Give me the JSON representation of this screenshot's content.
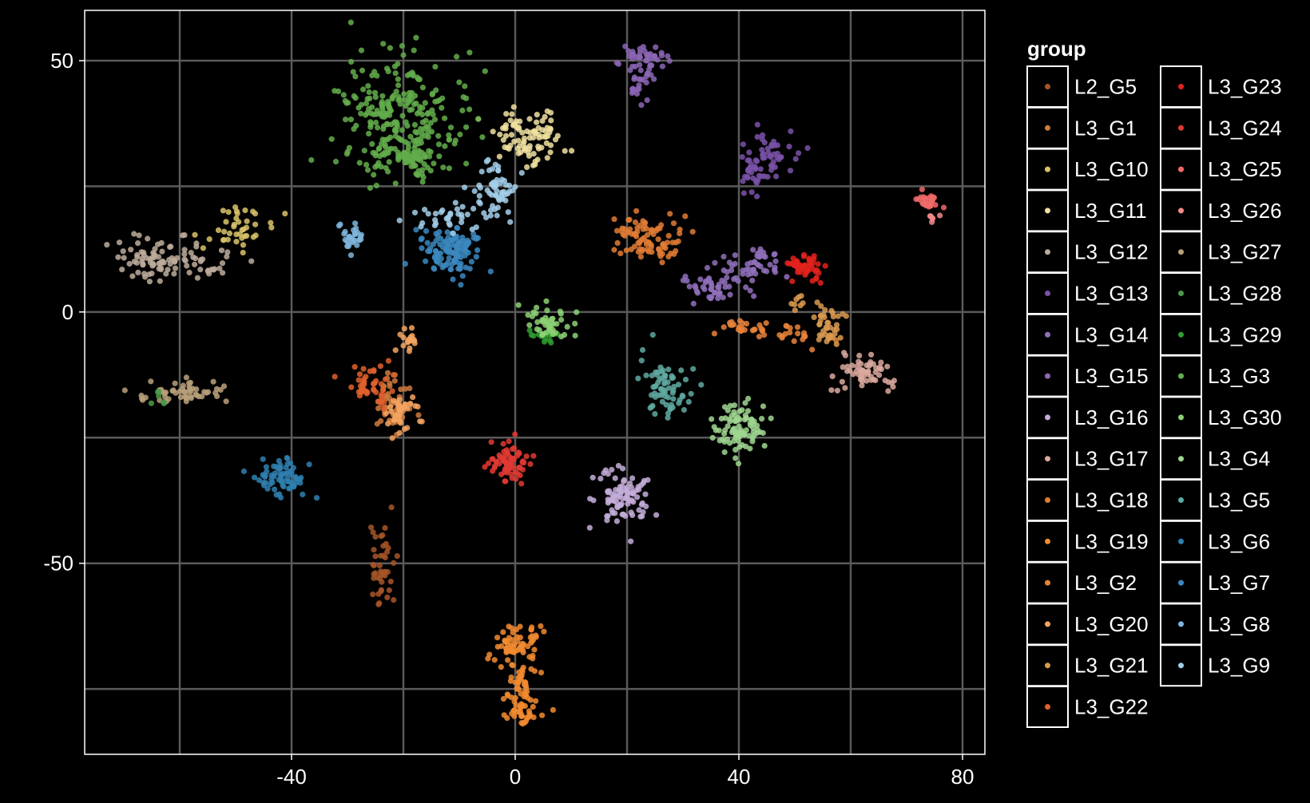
{
  "chart_data": {
    "type": "scatter",
    "title": "",
    "xlabel": "",
    "ylabel": "",
    "xlim": [
      -77,
      84
    ],
    "ylim": [
      -88,
      60
    ],
    "xticks": [
      -40,
      0,
      40,
      80
    ],
    "yticks": [
      -50,
      0,
      50
    ],
    "xtick_labels": [
      "-40",
      "0",
      "40",
      "80"
    ],
    "ytick_labels": [
      "-50",
      "0",
      "50"
    ],
    "grid": true,
    "legend_title": "group",
    "legend_placement": "right",
    "series": [
      {
        "name": "L2_G5",
        "color": "#a65628",
        "clusters": [
          [
            -24,
            -51,
            1.2,
            5,
            45
          ]
        ]
      },
      {
        "name": "L3_G1",
        "color": "#cc7a3e",
        "clusters": [
          [
            -22,
            -18,
            2,
            3,
            50
          ]
        ]
      },
      {
        "name": "L3_G10",
        "color": "#d9c36a",
        "clusters": [
          [
            -50,
            17,
            3,
            2,
            40
          ]
        ]
      },
      {
        "name": "L3_G11",
        "color": "#f0e0a0",
        "clusters": [
          [
            2,
            35,
            3.5,
            2.5,
            90
          ]
        ]
      },
      {
        "name": "L3_G12",
        "color": "#bcab9b",
        "clusters": [
          [
            -66,
            10,
            2,
            2,
            40
          ],
          [
            -60,
            10,
            5,
            2,
            60
          ]
        ]
      },
      {
        "name": "L3_G13",
        "color": "#7a52a8",
        "clusters": [
          [
            45,
            31,
            2.5,
            3,
            50
          ],
          [
            42,
            27,
            1.2,
            2,
            20
          ]
        ]
      },
      {
        "name": "L3_G14",
        "color": "#9170bb",
        "clusters": [
          [
            35,
            5,
            2.5,
            2,
            40
          ],
          [
            41,
            8,
            2.5,
            2,
            35
          ],
          [
            45,
            10,
            1.5,
            1.5,
            20
          ]
        ]
      },
      {
        "name": "L3_G15",
        "color": "#8c66b5",
        "clusters": [
          [
            23,
            51,
            2.5,
            1.2,
            40
          ],
          [
            22,
            46,
            1.2,
            2,
            25
          ]
        ]
      },
      {
        "name": "L3_G16",
        "color": "#c4aed9",
        "clusters": [
          [
            19,
            -37,
            2.5,
            3,
            90
          ]
        ]
      },
      {
        "name": "L3_G17",
        "color": "#d9a99d",
        "clusters": [
          [
            63,
            -12,
            3,
            1.5,
            60
          ]
        ]
      },
      {
        "name": "L3_G18",
        "color": "#e07b35",
        "clusters": [
          [
            23,
            15,
            3,
            2,
            70
          ],
          [
            26,
            12,
            1.5,
            1.2,
            20
          ]
        ]
      },
      {
        "name": "L3_G19",
        "color": "#f28b30",
        "clusters": [
          [
            0,
            -66,
            2,
            2.5,
            60
          ],
          [
            1,
            -73,
            1.2,
            3.5,
            40
          ],
          [
            1,
            -79,
            1.8,
            2,
            40
          ]
        ]
      },
      {
        "name": "L3_G2",
        "color": "#e8833a",
        "clusters": [
          [
            40,
            -3,
            2,
            1.2,
            20
          ],
          [
            48,
            -4,
            3,
            1.2,
            25
          ]
        ]
      },
      {
        "name": "L3_G20",
        "color": "#f4a460",
        "clusters": [
          [
            -19,
            -6,
            1,
            1,
            18
          ],
          [
            -20,
            -20,
            1.5,
            2,
            35
          ]
        ]
      },
      {
        "name": "L3_G21",
        "color": "#d99a50",
        "clusters": [
          [
            56,
            -3,
            1.5,
            2,
            40
          ],
          [
            51,
            2,
            0.8,
            0.8,
            8
          ]
        ]
      },
      {
        "name": "L3_G22",
        "color": "#e0602d",
        "clusters": [
          [
            -26,
            -15,
            2,
            2,
            45
          ]
        ]
      },
      {
        "name": "L3_G23",
        "color": "#e3221d",
        "clusters": [
          [
            52,
            9,
            1.5,
            1.5,
            50
          ]
        ]
      },
      {
        "name": "L3_G24",
        "color": "#e03a32",
        "clusters": [
          [
            -1,
            -30,
            2,
            2,
            70
          ]
        ]
      },
      {
        "name": "L3_G25",
        "color": "#f06a6a",
        "clusters": [
          [
            74,
            22,
            1,
            1,
            30
          ]
        ]
      },
      {
        "name": "L3_G26",
        "color": "#f28a8a",
        "clusters": [
          [
            75,
            19,
            0.5,
            0.5,
            6
          ]
        ]
      },
      {
        "name": "L3_G27",
        "color": "#b8a07a",
        "clusters": [
          [
            -60,
            -16,
            4,
            1.2,
            55
          ]
        ]
      },
      {
        "name": "L3_G28",
        "color": "#4a9a4a",
        "clusters": [
          [
            -64,
            -17,
            0.8,
            0.8,
            6
          ]
        ]
      },
      {
        "name": "L3_G29",
        "color": "#2f9f2f",
        "clusters": [
          [
            5,
            -5,
            1.5,
            0.8,
            14
          ]
        ]
      },
      {
        "name": "L3_G3",
        "color": "#63ad4b",
        "clusters": [
          [
            -20,
            38,
            6,
            6,
            260
          ],
          [
            -19,
            30,
            2,
            2,
            50
          ]
        ]
      },
      {
        "name": "L3_G30",
        "color": "#8cd174",
        "clusters": [
          [
            6,
            -2,
            2,
            1.5,
            45
          ]
        ]
      },
      {
        "name": "L3_G4",
        "color": "#9fd68f",
        "clusters": [
          [
            40,
            -23,
            2.5,
            2.5,
            90
          ]
        ]
      },
      {
        "name": "L3_G5",
        "color": "#5fa9a1",
        "clusters": [
          [
            27,
            -15,
            2,
            3,
            70
          ]
        ]
      },
      {
        "name": "L3_G6",
        "color": "#2f80b0",
        "clusters": [
          [
            -42,
            -33,
            2.5,
            2,
            70
          ]
        ]
      },
      {
        "name": "L3_G7",
        "color": "#3b88c0",
        "clusters": [
          [
            -11,
            12,
            2.5,
            2.5,
            120
          ]
        ]
      },
      {
        "name": "L3_G8",
        "color": "#7fb5dd",
        "clusters": [
          [
            -29,
            15,
            1.2,
            1.2,
            30
          ]
        ]
      },
      {
        "name": "L3_G9",
        "color": "#a3cfea",
        "clusters": [
          [
            -3,
            24,
            2,
            2.5,
            50
          ],
          [
            -10,
            19,
            4,
            1.5,
            40
          ]
        ]
      }
    ]
  }
}
